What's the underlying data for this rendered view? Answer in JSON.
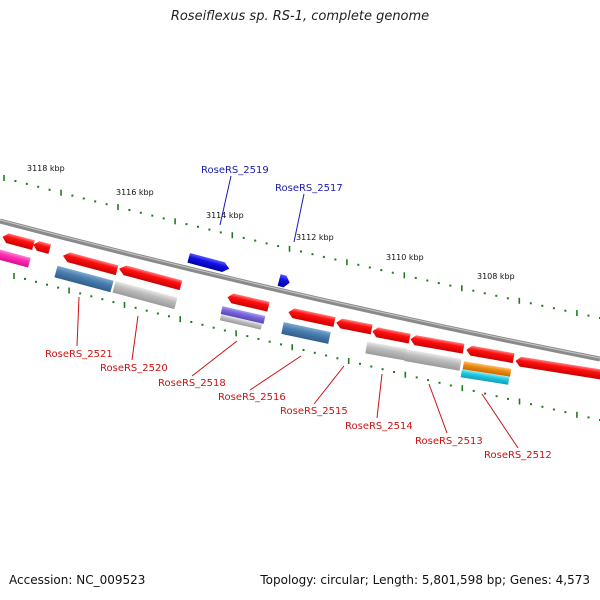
{
  "title": "Roseiflexus sp. RS-1, complete genome",
  "footer": {
    "accession_label": "Accession: NC_009523",
    "summary_label": "Topology: circular; Length: 5,801,598 bp; Genes: 4,573"
  },
  "colors": {
    "backbone": "#888888",
    "tick": "#1a7f1a",
    "upper_label": "#1a1ab0",
    "lower_label": "#cc1111",
    "red": "#f00000",
    "grey": "#bdbdbd",
    "steel_blue": "#4a7fb0",
    "blue": "#1010e0",
    "magenta": "#ff2db4",
    "violet": "#7a66d9",
    "orange": "#f08c10",
    "cyan": "#22c8e0"
  },
  "kbp_labels": [
    "3118 kbp",
    "3116 kbp",
    "3114 kbp",
    "3112 kbp",
    "3110 kbp",
    "3108 kbp"
  ],
  "upper_genes": [
    "RoseRS_2519",
    "RoseRS_2517"
  ],
  "lower_genes": [
    "RoseRS_2521",
    "RoseRS_2520",
    "RoseRS_2518",
    "RoseRS_2516",
    "RoseRS_2515",
    "RoseRS_2514",
    "RoseRS_2513",
    "RoseRS_2512"
  ]
}
